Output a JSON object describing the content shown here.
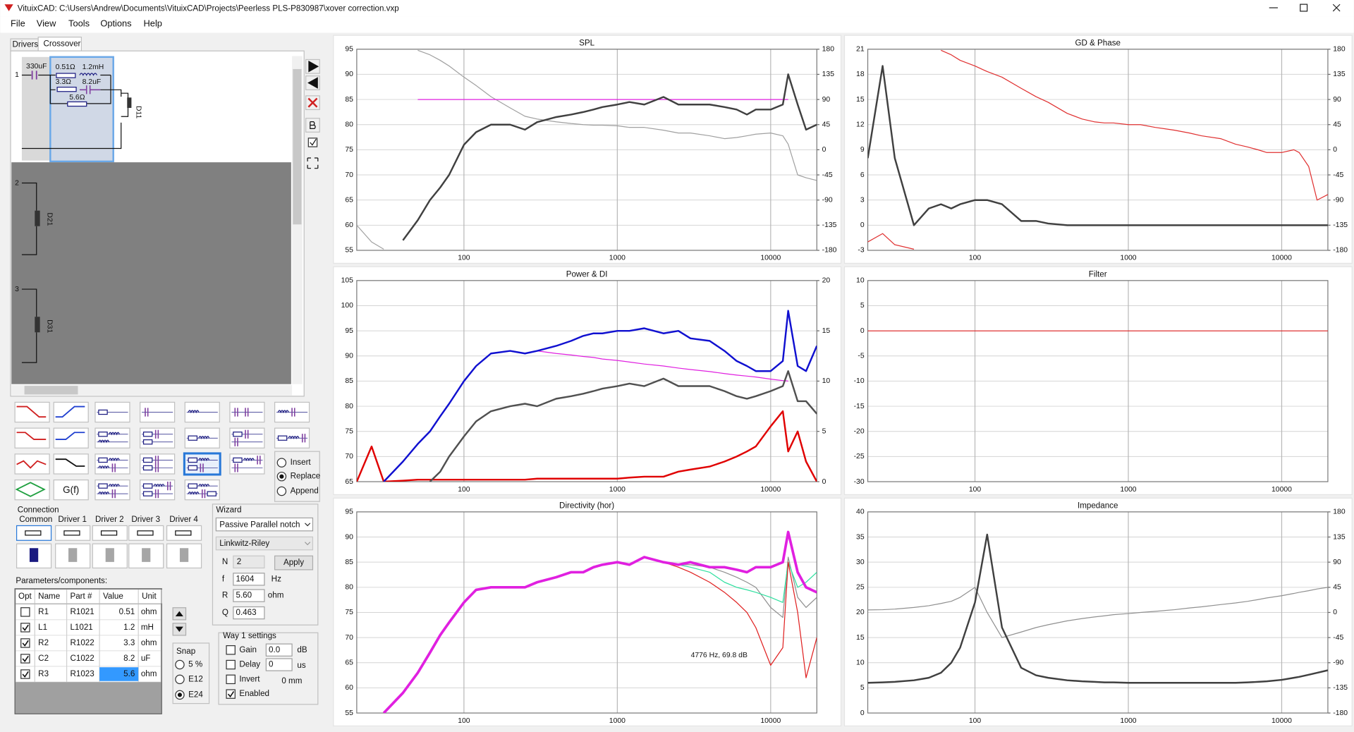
{
  "window": {
    "title": "VituixCAD: C:\\Users\\Andrew\\Documents\\VituixCAD\\Projects\\Peerless PLS-P830987\\xover correction.vxp"
  },
  "menu": [
    "File",
    "View",
    "Tools",
    "Options",
    "Help"
  ],
  "tabs": [
    "Drivers",
    "Crossover"
  ],
  "schematic": {
    "ways": [
      "1",
      "2",
      "3"
    ],
    "drivers": [
      "D11",
      "D21",
      "D31"
    ],
    "components": [
      "330uF",
      "0.51Ω",
      "1.2mH",
      "3.3Ω",
      "8.2uF",
      "5.6Ω"
    ]
  },
  "palette": {
    "gf": "G(f)",
    "modes": [
      "Insert",
      "Replace",
      "Append"
    ],
    "selected_mode": 1
  },
  "connection": {
    "title": "Connection",
    "labels": [
      "Common",
      "Driver 1",
      "Driver 2",
      "Driver 3",
      "Driver 4"
    ]
  },
  "wizard": {
    "title": "Wizard",
    "type": "Passive Parallel notch",
    "alignment": "Linkwitz-Riley",
    "n_label": "N",
    "n": "2",
    "apply": "Apply",
    "f_label": "f",
    "f": "1604",
    "f_unit": "Hz",
    "r_label": "R",
    "r": "5.60",
    "r_unit": "ohm",
    "q_label": "Q",
    "q": "0.463"
  },
  "parameters": {
    "title": "Parameters/components:",
    "columns": [
      "Opt",
      "Name",
      "Part #",
      "Value",
      "Unit"
    ],
    "rows": [
      {
        "opt": false,
        "name": "R1",
        "part": "R1021",
        "value": 0.51,
        "unit": "ohm"
      },
      {
        "opt": true,
        "name": "L1",
        "part": "L1021",
        "value": 1.2,
        "unit": "mH"
      },
      {
        "opt": true,
        "name": "R2",
        "part": "R1022",
        "value": 3.3,
        "unit": "ohm"
      },
      {
        "opt": true,
        "name": "C2",
        "part": "C1022",
        "value": 8.2,
        "unit": "uF"
      },
      {
        "opt": true,
        "name": "R3",
        "part": "R1023",
        "value": 5.6,
        "unit": "ohm"
      }
    ]
  },
  "snap": {
    "title": "Snap",
    "options": [
      "5 %",
      "E12",
      "E24"
    ],
    "selected": 2
  },
  "way": {
    "title": "Way 1 settings",
    "gain": "Gain",
    "gain_value": "0.0",
    "gain_unit": "dB",
    "delay": "Delay",
    "delay_value": "0",
    "delay_unit": "us",
    "invert": "Invert",
    "invert_value": "0 mm",
    "enabled": "Enabled",
    "enabled_checked": true
  },
  "chart_data": [
    {
      "type": "line",
      "title": "SPL",
      "xscale": "log",
      "xlim": [
        20,
        20000
      ],
      "xticks": [
        100,
        1000,
        10000
      ],
      "ylim": [
        55,
        95
      ],
      "yticks": [
        55,
        60,
        65,
        70,
        75,
        80,
        85,
        90,
        95
      ],
      "y2lim": [
        -180,
        180
      ],
      "y2ticks": [
        -180,
        -135,
        -90,
        -45,
        0,
        45,
        90,
        135,
        180
      ],
      "grid": true,
      "x": [
        20,
        25,
        30,
        40,
        50,
        60,
        70,
        80,
        100,
        120,
        150,
        200,
        250,
        300,
        400,
        500,
        600,
        700,
        800,
        1000,
        1200,
        1500,
        2000,
        2500,
        3000,
        4000,
        5000,
        6000,
        7000,
        8000,
        10000,
        12000,
        13000,
        15000,
        17000,
        20000
      ],
      "series": [
        {
          "color": "#a0a0a0",
          "width": 1,
          "axis": "y2",
          "values": [
            -135,
            -165,
            -178,
            null,
            178,
            170,
            160,
            150,
            130,
            115,
            95,
            75,
            60,
            55,
            50,
            47,
            45,
            44,
            44,
            43,
            40,
            40,
            35,
            30,
            30,
            25,
            20,
            22,
            25,
            28,
            30,
            25,
            10,
            -45,
            -50,
            -55
          ]
        },
        {
          "color": "#e020e0",
          "width": 1,
          "values": [
            null,
            null,
            null,
            null,
            85,
            85,
            85,
            85,
            85,
            85,
            85,
            85,
            85,
            85,
            85,
            85,
            85,
            85,
            85,
            85,
            85,
            85,
            85,
            85,
            85,
            85,
            85,
            85,
            85,
            85,
            85,
            85,
            85,
            null,
            null,
            null
          ]
        },
        {
          "color": "#404040",
          "width": 2,
          "values": [
            null,
            null,
            null,
            57,
            61,
            65,
            67.5,
            70,
            76,
            78.5,
            80,
            80,
            79,
            80.5,
            81.5,
            82,
            82.5,
            83,
            83.5,
            84,
            84.5,
            84,
            85.5,
            84,
            84,
            84,
            83.5,
            83,
            82,
            83,
            83,
            84,
            90,
            84,
            79,
            80
          ]
        }
      ]
    },
    {
      "type": "line",
      "title": "GD & Phase",
      "xscale": "log",
      "xlim": [
        20,
        20000
      ],
      "xticks": [
        100,
        1000,
        10000
      ],
      "ylim": [
        -3,
        21
      ],
      "yticks": [
        -3,
        0,
        3,
        6,
        9,
        12,
        15,
        18,
        21
      ],
      "y2lim": [
        -180,
        180
      ],
      "y2ticks": [
        -180,
        -135,
        -90,
        -45,
        0,
        45,
        90,
        135,
        180
      ],
      "grid": true,
      "x": [
        20,
        25,
        30,
        40,
        50,
        60,
        70,
        80,
        100,
        120,
        150,
        200,
        250,
        300,
        400,
        500,
        600,
        700,
        800,
        1000,
        1200,
        1500,
        2000,
        2500,
        3000,
        4000,
        5000,
        6000,
        7000,
        8000,
        10000,
        12000,
        13000,
        15000,
        17000,
        20000
      ],
      "series": [
        {
          "color": "#e03030",
          "width": 1,
          "axis": "y2",
          "values": [
            -165,
            -150,
            -170,
            -178,
            null,
            178,
            170,
            160,
            150,
            140,
            130,
            110,
            95,
            85,
            65,
            55,
            50,
            48,
            48,
            45,
            45,
            40,
            35,
            30,
            25,
            20,
            10,
            5,
            0,
            -5,
            -5,
            0,
            -5,
            -30,
            -90,
            -80
          ]
        },
        {
          "color": "#404040",
          "width": 2,
          "values": [
            8,
            19,
            8,
            0,
            2,
            2.5,
            2,
            2.5,
            3,
            3,
            2.5,
            0.5,
            0.5,
            0.2,
            0,
            0,
            0,
            0,
            0,
            0,
            0,
            0,
            0,
            0,
            0,
            0,
            0,
            0,
            0,
            0,
            0,
            0,
            0,
            0,
            0,
            0
          ]
        }
      ]
    },
    {
      "type": "line",
      "title": "Power & DI",
      "xscale": "log",
      "xlim": [
        20,
        20000
      ],
      "xticks": [
        100,
        1000,
        10000
      ],
      "ylim": [
        65,
        105
      ],
      "yticks": [
        65,
        70,
        75,
        80,
        85,
        90,
        95,
        100,
        105
      ],
      "y2lim": [
        0,
        20
      ],
      "y2ticks": [
        0,
        5,
        10,
        15,
        20
      ],
      "grid": true,
      "x": [
        20,
        25,
        30,
        40,
        50,
        60,
        70,
        80,
        100,
        120,
        150,
        200,
        250,
        300,
        400,
        500,
        600,
        700,
        800,
        1000,
        1200,
        1500,
        2000,
        2500,
        3000,
        4000,
        5000,
        6000,
        7000,
        8000,
        10000,
        12000,
        13000,
        15000,
        17000,
        20000
      ],
      "series": [
        {
          "color": "#e00000",
          "width": 2,
          "axis": "y2",
          "values": [
            0,
            3.5,
            0,
            0.1,
            0.2,
            0.2,
            0.2,
            0.2,
            0.2,
            0.2,
            0.2,
            0.2,
            0.2,
            0.3,
            0.3,
            0.3,
            0.3,
            0.3,
            0.3,
            0.3,
            0.4,
            0.5,
            0.5,
            1,
            1.2,
            1.5,
            2,
            2.5,
            3,
            3.5,
            5.5,
            7,
            3,
            5,
            2,
            0
          ]
        },
        {
          "color": "#e020e0",
          "width": 1,
          "values": [
            null,
            null,
            null,
            null,
            null,
            null,
            null,
            null,
            null,
            null,
            null,
            null,
            null,
            91,
            90.5,
            90.2,
            89.9,
            89.7,
            89.4,
            89.1,
            88.8,
            88.4,
            88,
            87.6,
            87.3,
            86.9,
            86.5,
            86.2,
            86,
            85.8,
            85.4,
            85.1,
            85,
            null,
            null,
            null
          ]
        },
        {
          "color": "#505050",
          "width": 2,
          "values": [
            null,
            null,
            null,
            null,
            null,
            65,
            67,
            70,
            74,
            77,
            79,
            80,
            80.5,
            80,
            81.5,
            82,
            82.5,
            83,
            83.5,
            84,
            84.5,
            84,
            85.5,
            84,
            84,
            84,
            83,
            82,
            81.5,
            82,
            83,
            84,
            87,
            81,
            81,
            78.5
          ]
        },
        {
          "color": "#1010d0",
          "width": 2,
          "values": [
            null,
            null,
            65,
            69,
            72.5,
            75,
            78,
            80.5,
            85,
            88,
            90.5,
            91,
            90.5,
            91,
            92,
            93,
            94,
            94.5,
            94.5,
            95,
            95,
            95.5,
            94.5,
            95,
            93.5,
            93,
            91,
            89,
            88,
            87,
            87,
            89,
            99,
            88,
            87,
            92
          ]
        }
      ]
    },
    {
      "type": "line",
      "title": "Filter",
      "xscale": "log",
      "xlim": [
        20,
        20000
      ],
      "xticks": [
        100,
        1000,
        10000
      ],
      "ylim": [
        -30,
        10
      ],
      "yticks": [
        -30,
        -25,
        -20,
        -15,
        -10,
        -5,
        0,
        5,
        10
      ],
      "grid": true,
      "x": [
        20,
        25,
        30,
        40,
        50,
        60,
        70,
        80,
        100,
        120,
        150,
        200,
        250,
        300,
        400,
        500,
        600,
        700,
        800,
        1000,
        1200,
        1500,
        2000,
        2500,
        3000,
        4000,
        5000,
        6000,
        7000,
        8000,
        10000,
        12000,
        13000,
        15000,
        17000,
        20000
      ],
      "series": [
        {
          "color": "#e02020",
          "width": 1,
          "values": [
            0,
            0,
            0,
            0,
            0,
            0,
            0,
            0,
            0,
            0,
            0,
            0,
            0,
            0,
            0,
            0,
            0,
            0,
            0,
            0,
            0,
            0,
            0,
            0,
            0,
            0,
            0,
            0,
            0,
            0,
            0,
            0,
            0,
            0,
            0,
            0
          ]
        }
      ]
    },
    {
      "type": "line",
      "title": "Directivity (hor)",
      "xscale": "log",
      "xlim": [
        20,
        20000
      ],
      "xticks": [
        100,
        1000,
        10000
      ],
      "ylim": [
        55,
        95
      ],
      "yticks": [
        55,
        60,
        65,
        70,
        75,
        80,
        85,
        90,
        95
      ],
      "grid": true,
      "annotation": "4776 Hz, 69.8 dB",
      "x": [
        20,
        25,
        30,
        40,
        50,
        60,
        70,
        80,
        100,
        120,
        150,
        200,
        250,
        300,
        400,
        500,
        600,
        700,
        800,
        1000,
        1200,
        1500,
        2000,
        2500,
        3000,
        4000,
        5000,
        6000,
        7000,
        8000,
        10000,
        12000,
        13000,
        15000,
        17000,
        20000
      ],
      "series": [
        {
          "color": "#909090",
          "width": 1,
          "values": [
            null,
            null,
            55,
            59,
            63,
            67,
            70.5,
            73,
            77,
            79.5,
            80,
            80,
            80,
            81,
            82,
            83,
            83,
            84,
            84.5,
            85,
            84.5,
            86,
            85,
            84.5,
            84.5,
            84,
            83,
            82,
            81,
            80,
            76,
            74,
            86,
            78,
            76,
            78
          ]
        },
        {
          "color": "#30e0a0",
          "width": 1,
          "values": [
            null,
            null,
            55,
            59,
            63,
            67,
            70.5,
            73,
            77,
            79.5,
            80,
            80,
            80,
            81,
            82,
            83,
            83,
            84,
            84.5,
            85,
            84.5,
            86,
            85,
            84.5,
            84,
            83,
            81,
            80,
            79.5,
            79,
            78,
            77,
            85,
            80,
            81,
            83
          ]
        },
        {
          "color": "#e02020",
          "width": 1,
          "values": [
            null,
            null,
            55,
            59,
            63,
            67,
            70.5,
            73,
            77,
            79.5,
            80,
            80,
            80,
            81,
            82,
            83,
            83,
            84,
            84.5,
            85,
            84.5,
            86,
            85,
            84,
            83,
            81,
            79,
            77,
            75,
            72,
            64.5,
            68,
            85,
            75,
            62,
            70
          ]
        },
        {
          "color": "#e020e0",
          "width": 3,
          "values": [
            null,
            null,
            55,
            59,
            63,
            67,
            70.5,
            73,
            77,
            79.5,
            80,
            80,
            80,
            81,
            82,
            83,
            83,
            84,
            84.5,
            85,
            84.5,
            86,
            85,
            84.5,
            85,
            84,
            84,
            83.5,
            83,
            84,
            84,
            85,
            91,
            83,
            80,
            79
          ]
        }
      ]
    },
    {
      "type": "line",
      "title": "Impedance",
      "xscale": "log",
      "xlim": [
        20,
        20000
      ],
      "xticks": [
        100,
        1000,
        10000
      ],
      "ylim": [
        0,
        40
      ],
      "yticks": [
        0,
        5,
        10,
        15,
        20,
        25,
        30,
        35,
        40
      ],
      "y2lim": [
        -180,
        180
      ],
      "y2ticks": [
        -180,
        -135,
        -90,
        -45,
        0,
        45,
        90,
        135,
        180
      ],
      "grid": true,
      "x": [
        20,
        25,
        30,
        40,
        50,
        60,
        70,
        80,
        100,
        120,
        150,
        200,
        250,
        300,
        400,
        500,
        600,
        700,
        800,
        1000,
        1200,
        1500,
        2000,
        2500,
        3000,
        4000,
        5000,
        6000,
        7000,
        8000,
        10000,
        12000,
        13000,
        15000,
        17000,
        20000
      ],
      "series": [
        {
          "color": "#909090",
          "width": 1,
          "axis": "y2",
          "values": [
            4.5,
            5,
            6,
            9,
            12,
            16,
            20,
            27,
            45,
            0,
            -45,
            -35,
            -27,
            -22,
            -15,
            -11,
            -8,
            -6,
            -4,
            -2,
            0,
            2,
            5,
            8,
            10,
            14,
            17,
            20,
            23,
            26,
            30,
            34,
            36,
            39,
            42,
            45
          ]
        },
        {
          "color": "#404040",
          "width": 2,
          "values": [
            6,
            6.1,
            6.2,
            6.5,
            7,
            8,
            10,
            13,
            22,
            35.5,
            17,
            9,
            7.5,
            7,
            6.5,
            6.3,
            6.2,
            6.1,
            6.1,
            6,
            6,
            6,
            6,
            6,
            6,
            6,
            6,
            6.1,
            6.2,
            6.3,
            6.6,
            7,
            7.2,
            7.6,
            8,
            8.5
          ]
        }
      ]
    }
  ]
}
